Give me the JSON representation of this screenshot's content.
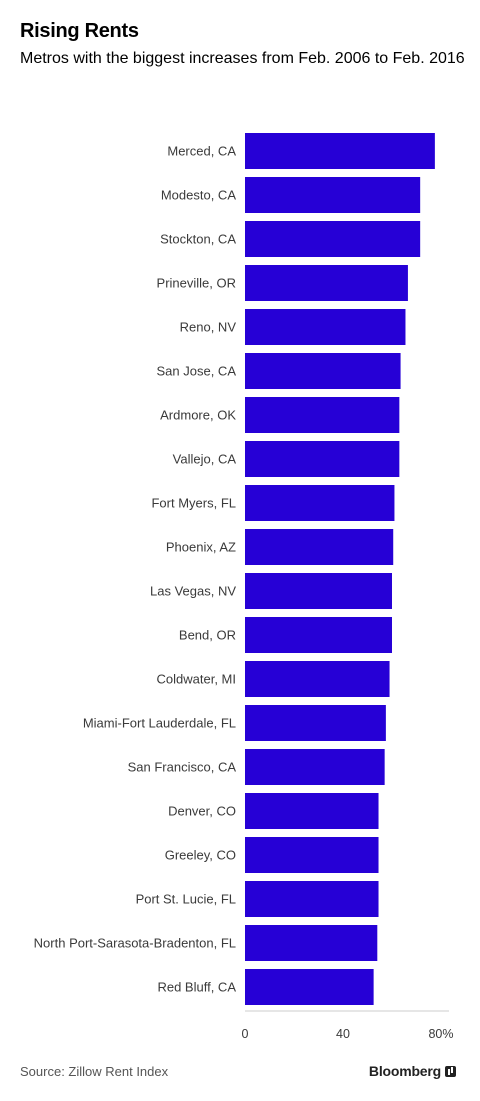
{
  "title": "Rising Rents",
  "subtitle": "Metros with the biggest increases from Feb. 2006 to Feb. 2016",
  "source": "Source: Zillow Rent Index",
  "brand": "Bloomberg",
  "colors": {
    "bar": "#2600d6",
    "axis": "#cccccc",
    "text": "#3a3a3a"
  },
  "chart_data": {
    "type": "bar",
    "orientation": "horizontal",
    "title": "Rising Rents",
    "subtitle": "Metros with the biggest increases from Feb. 2006 to Feb. 2016",
    "categories": [
      "Merced, CA",
      "Modesto, CA",
      "Stockton, CA",
      "Prineville, OR",
      "Reno, NV",
      "San Jose, CA",
      "Ardmore, OK",
      "Vallejo, CA",
      "Fort Myers, FL",
      "Phoenix, AZ",
      "Las Vegas, NV",
      "Bend, OR",
      "Coldwater, MI",
      "Miami-Fort Lauderdale, FL",
      "San Francisco, CA",
      "Denver, CO",
      "Greeley, CO",
      "Port St. Lucie, FL",
      "North Port-Sarasota-Bradenton, FL",
      "Red Bluff, CA"
    ],
    "values": [
      77.5,
      71.5,
      71.5,
      66.5,
      65.5,
      63.5,
      63.0,
      63.0,
      61.0,
      60.5,
      60.0,
      60.0,
      59.0,
      57.5,
      57.0,
      54.5,
      54.5,
      54.5,
      54.0,
      52.5
    ],
    "xlim": [
      0,
      80
    ],
    "xticks": [
      0,
      40,
      80
    ],
    "xtick_labels": [
      "0",
      "40",
      "80%"
    ],
    "grid": false,
    "legend": "none"
  }
}
